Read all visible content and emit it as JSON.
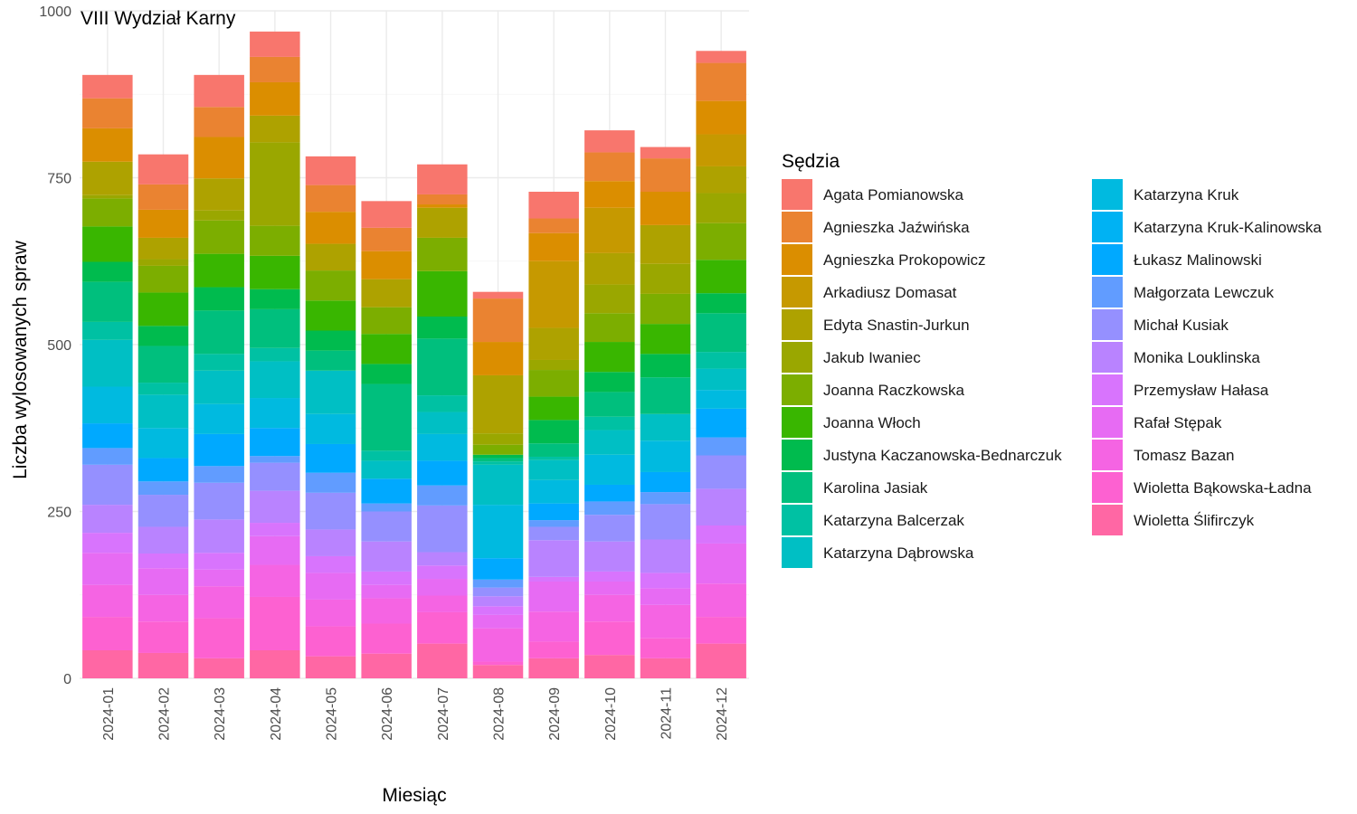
{
  "chart_data": {
    "type": "bar",
    "stacked": true,
    "title": "VIII Wydział Karny",
    "xlabel": "Miesiąc",
    "ylabel": "Liczba wylosowanych spraw",
    "ylim": [
      0,
      1000
    ],
    "yticks": [
      0,
      250,
      500,
      750,
      1000
    ],
    "grid": true,
    "legend_title": "Sędzia",
    "legend_position": "right",
    "categories": [
      "2024-01",
      "2024-02",
      "2024-03",
      "2024-04",
      "2024-05",
      "2024-06",
      "2024-07",
      "2024-08",
      "2024-09",
      "2024-10",
      "2024-11",
      "2024-12"
    ],
    "series": [
      {
        "name": "Agata Pomianowska",
        "color": "#F8766D",
        "values": [
          35,
          45,
          48,
          38,
          43,
          40,
          45,
          10,
          40,
          33,
          17,
          18
        ]
      },
      {
        "name": "Agnieszka Jaźwińska",
        "color": "#EA8331",
        "values": [
          45,
          38,
          45,
          38,
          40,
          35,
          15,
          65,
          22,
          43,
          50,
          57
        ]
      },
      {
        "name": "Agnieszka Prokopowicz",
        "color": "#DB8E00",
        "values": [
          50,
          42,
          62,
          50,
          48,
          42,
          5,
          50,
          42,
          40,
          50,
          50
        ]
      },
      {
        "name": "Arkadiusz Domasat",
        "color": "#C69900",
        "values": [
          0,
          0,
          0,
          0,
          0,
          0,
          0,
          0,
          100,
          68,
          0,
          48
        ]
      },
      {
        "name": "Edyta Snastin-Jurkun",
        "color": "#AEA200",
        "values": [
          50,
          32,
          48,
          40,
          40,
          42,
          45,
          87,
          48,
          47,
          58,
          40
        ]
      },
      {
        "name": "Jakub Iwaniec",
        "color": "#9AA700",
        "values": [
          5,
          10,
          15,
          125,
          0,
          0,
          0,
          17,
          15,
          43,
          45,
          45
        ]
      },
      {
        "name": "Joanna Raczkowska",
        "color": "#7CAE00",
        "values": [
          42,
          40,
          50,
          45,
          45,
          40,
          50,
          15,
          40,
          43,
          45,
          55
        ]
      },
      {
        "name": "Joanna Włoch",
        "color": "#39B600",
        "values": [
          53,
          50,
          50,
          50,
          45,
          45,
          68,
          0,
          35,
          45,
          45,
          50
        ]
      },
      {
        "name": "Justyna Kaczanowska-Bednarczuk",
        "color": "#00BB4E",
        "values": [
          30,
          30,
          35,
          30,
          30,
          30,
          33,
          5,
          35,
          30,
          35,
          30
        ]
      },
      {
        "name": "Karolina Jasiak",
        "color": "#00BF7D",
        "values": [
          60,
          55,
          65,
          58,
          30,
          100,
          85,
          5,
          20,
          37,
          55,
          58
        ]
      },
      {
        "name": "Katarzyna Balcerzak",
        "color": "#00C1A3",
        "values": [
          27,
          18,
          25,
          20,
          0,
          15,
          25,
          5,
          5,
          20,
          0,
          25
        ]
      },
      {
        "name": "Katarzyna Dąbrowska",
        "color": "#00BFC4",
        "values": [
          70,
          50,
          50,
          55,
          65,
          27,
          33,
          60,
          30,
          37,
          40,
          32
        ]
      },
      {
        "name": "Katarzyna Kruk",
        "color": "#00BAE0",
        "values": [
          55,
          45,
          45,
          45,
          45,
          0,
          40,
          80,
          35,
          45,
          47,
          28
        ]
      },
      {
        "name": "Katarzyna Kruk-Kalinowska",
        "color": "#00B2F3",
        "values": [
          0,
          0,
          0,
          0,
          0,
          0,
          0,
          0,
          0,
          0,
          0,
          0
        ]
      },
      {
        "name": "Łukasz Malinowski",
        "color": "#00A9FF",
        "values": [
          37,
          35,
          48,
          42,
          43,
          37,
          37,
          32,
          25,
          25,
          30,
          43
        ]
      },
      {
        "name": "Małgorzata Lewczuk",
        "color": "#619CFF",
        "values": [
          25,
          20,
          25,
          10,
          30,
          12,
          30,
          12,
          10,
          20,
          18,
          27
        ]
      },
      {
        "name": "Michał Kusiak",
        "color": "#9590FF",
        "values": [
          60,
          48,
          55,
          42,
          55,
          45,
          70,
          13,
          20,
          40,
          53,
          50
        ]
      },
      {
        "name": "Monika Louklinska",
        "color": "#B983FF",
        "values": [
          42,
          40,
          50,
          48,
          40,
          45,
          20,
          15,
          55,
          45,
          50,
          55
        ]
      },
      {
        "name": "Przemysław Hałasa",
        "color": "#D874FD",
        "values": [
          30,
          22,
          25,
          20,
          25,
          20,
          20,
          13,
          7,
          15,
          23,
          27
        ]
      },
      {
        "name": "Rafał Stępak",
        "color": "#E76BF3",
        "values": [
          48,
          40,
          25,
          43,
          40,
          20,
          25,
          20,
          45,
          20,
          25,
          60
        ]
      },
      {
        "name": "Tomasz Bazan",
        "color": "#F564E3",
        "values": [
          48,
          40,
          48,
          48,
          40,
          38,
          25,
          50,
          45,
          40,
          50,
          50
        ]
      },
      {
        "name": "Wioletta Bąkowska-Ładna",
        "color": "#FD61D1",
        "values": [
          50,
          47,
          60,
          80,
          45,
          45,
          47,
          5,
          25,
          50,
          30,
          40
        ]
      },
      {
        "name": "Wioletta Ślifirczyk",
        "color": "#FF67A4",
        "values": [
          42,
          38,
          30,
          42,
          33,
          37,
          52,
          20,
          30,
          35,
          30,
          52
        ]
      }
    ]
  }
}
